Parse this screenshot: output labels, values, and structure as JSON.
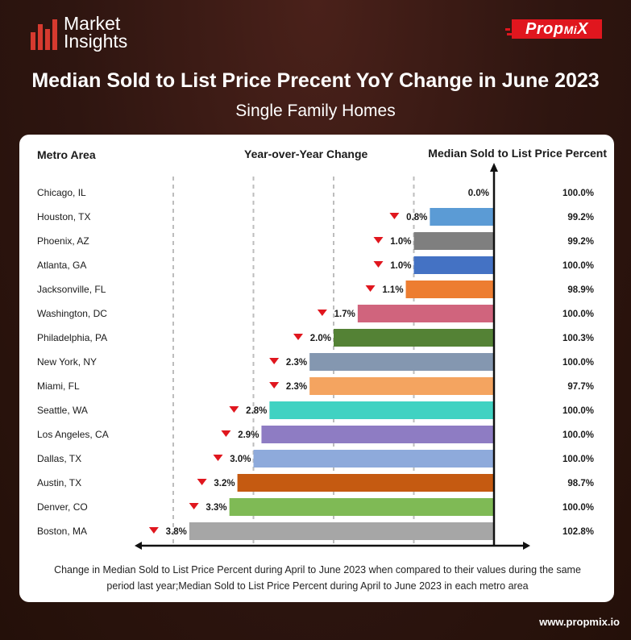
{
  "header": {
    "logo_line1": "Market",
    "logo_line2": "Insights",
    "brand_name": "Prop",
    "brand_mi": "Mi",
    "brand_x": "X"
  },
  "title": "Median Sold to List Price Precent YoY Change in June 2023",
  "subtitle": "Single Family Homes",
  "footnote": "Change in Median Sold to List Price Percent during April to June 2023 when compared to their values during the same period last year;Median Sold to List Price Percent during April to June 2023 in each metro area",
  "website": "www.propmix.io",
  "colors": {
    "background": "#2e1510",
    "accent": "#d63a2f",
    "brand": "#e0161e",
    "decline_arrow": "#e0161e"
  },
  "chart_data": {
    "type": "bar",
    "orientation": "horizontal",
    "column_headers": {
      "metro": "Metro Area",
      "yoy": "Year-over-Year Change",
      "sold_to_list": "Median Sold to List Price Percent"
    },
    "categories": [
      "Chicago, IL",
      "Houston, TX",
      "Phoenix, AZ",
      "Atlanta, GA",
      "Jacksonville, FL",
      "Washington, DC",
      "Philadelphia, PA",
      "New York, NY",
      "Miami, FL",
      "Seattle, WA",
      "Los Angeles, CA",
      "Dallas, TX",
      "Austin, TX",
      "Denver, CO",
      "Boston, MA"
    ],
    "series": [
      {
        "name": "Year-over-Year Change",
        "unit": "%",
        "direction": "decrease",
        "values": [
          0.0,
          0.8,
          1.0,
          1.0,
          1.1,
          1.7,
          2.0,
          2.3,
          2.3,
          2.8,
          2.9,
          3.0,
          3.2,
          3.3,
          3.8
        ],
        "labels": [
          "0.0%",
          "0.8%",
          "1.0%",
          "1.0%",
          "1.1%",
          "1.7%",
          "2.0%",
          "2.3%",
          "2.3%",
          "2.8%",
          "2.9%",
          "3.0%",
          "3.2%",
          "3.3%",
          "3.8%"
        ]
      },
      {
        "name": "Median Sold to List Price Percent",
        "unit": "%",
        "values": [
          100.0,
          99.2,
          99.2,
          100.0,
          98.9,
          100.0,
          100.3,
          100.0,
          97.7,
          100.0,
          100.0,
          100.0,
          98.7,
          100.0,
          102.8
        ],
        "labels": [
          "100.0%",
          "99.2%",
          "99.2%",
          "100.0%",
          "98.9%",
          "100.0%",
          "100.3%",
          "100.0%",
          "97.7%",
          "100.0%",
          "100.0%",
          "100.0%",
          "98.7%",
          "100.0%",
          "102.8%"
        ]
      }
    ],
    "bar_colors": [
      "#5b9bd5",
      "#5b9bd5",
      "#7f7f7f",
      "#4472c4",
      "#ed7d31",
      "#d0647d",
      "#548235",
      "#8497b0",
      "#f4a460",
      "#40d2c2",
      "#8e7cc3",
      "#8eaadb",
      "#c55a11",
      "#7fba55",
      "#a6a6a6"
    ],
    "xlim": [
      0,
      4.0
    ],
    "grid": "dashed vertical"
  }
}
